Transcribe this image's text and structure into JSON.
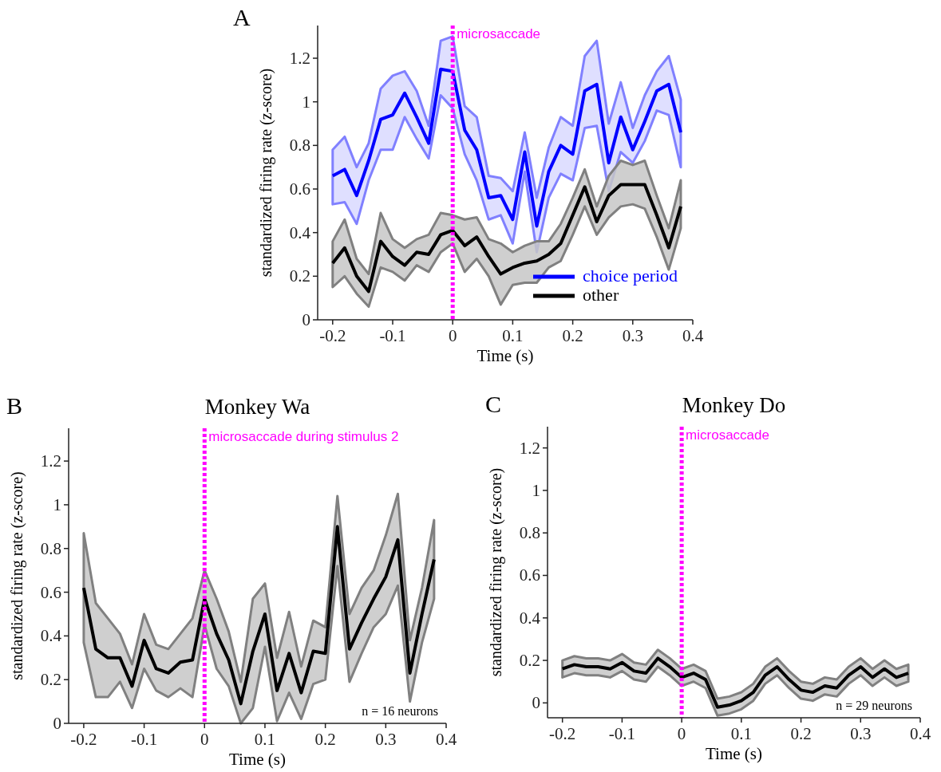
{
  "chart_data": [
    {
      "type": "line",
      "xlabel": "Time (s)",
      "ylabel": "standardized firing rate (z-score)",
      "annotations": [
        "A"
      ],
      "x": [
        -0.2,
        -0.18,
        -0.16,
        -0.14,
        -0.12,
        -0.1,
        -0.08,
        -0.06,
        -0.04,
        -0.02,
        0,
        0.02,
        0.04,
        0.06,
        0.08,
        0.1,
        0.12,
        0.14,
        0.16,
        0.18,
        0.2,
        0.22,
        0.24,
        0.26,
        0.28,
        0.3,
        0.32,
        0.34,
        0.36,
        0.38
      ],
      "series": [
        {
          "name": "choice period",
          "color": "#0000ff",
          "values": [
            0.66,
            0.69,
            0.57,
            0.73,
            0.92,
            0.94,
            1.04,
            0.93,
            0.81,
            1.15,
            1.14,
            0.87,
            0.78,
            0.56,
            0.57,
            0.46,
            0.77,
            0.43,
            0.68,
            0.8,
            0.76,
            1.05,
            1.08,
            0.72,
            0.93,
            0.78,
            0.91,
            1.05,
            1.08,
            0.86
          ],
          "upper": [
            0.78,
            0.84,
            0.7,
            0.81,
            1.06,
            1.12,
            1.14,
            1.05,
            0.89,
            1.28,
            1.3,
            0.98,
            0.93,
            0.66,
            0.65,
            0.59,
            0.86,
            0.56,
            0.79,
            0.93,
            0.89,
            1.21,
            1.28,
            0.9,
            1.09,
            0.88,
            1.03,
            1.14,
            1.21,
            1.01
          ],
          "lower": [
            0.53,
            0.54,
            0.44,
            0.64,
            0.78,
            0.78,
            0.93,
            0.83,
            0.74,
            1.03,
            0.97,
            0.76,
            0.64,
            0.46,
            0.48,
            0.35,
            0.68,
            0.31,
            0.56,
            0.67,
            0.64,
            0.88,
            0.89,
            0.59,
            0.77,
            0.72,
            0.82,
            0.96,
            0.94,
            0.7
          ]
        },
        {
          "name": "other",
          "color": "#000000",
          "values": [
            0.26,
            0.33,
            0.2,
            0.13,
            0.36,
            0.29,
            0.25,
            0.31,
            0.3,
            0.39,
            0.41,
            0.34,
            0.38,
            0.29,
            0.21,
            0.24,
            0.26,
            0.27,
            0.3,
            0.35,
            0.48,
            0.61,
            0.45,
            0.57,
            0.62,
            0.62,
            0.62,
            0.48,
            0.33,
            0.52
          ],
          "upper": [
            0.36,
            0.46,
            0.28,
            0.21,
            0.49,
            0.37,
            0.33,
            0.37,
            0.39,
            0.49,
            0.48,
            0.46,
            0.47,
            0.37,
            0.35,
            0.31,
            0.34,
            0.36,
            0.36,
            0.44,
            0.56,
            0.69,
            0.52,
            0.66,
            0.73,
            0.71,
            0.73,
            0.57,
            0.42,
            0.64
          ],
          "lower": [
            0.15,
            0.2,
            0.12,
            0.06,
            0.24,
            0.22,
            0.18,
            0.25,
            0.22,
            0.31,
            0.35,
            0.22,
            0.28,
            0.2,
            0.07,
            0.16,
            0.17,
            0.17,
            0.24,
            0.27,
            0.39,
            0.52,
            0.39,
            0.47,
            0.52,
            0.53,
            0.51,
            0.38,
            0.23,
            0.42
          ]
        }
      ],
      "ref_lines": [
        {
          "axis": "x",
          "value": 0,
          "label": "microsaccade",
          "color": "#ff00ff",
          "line_style": "dotted"
        }
      ],
      "xlim": [
        -0.225,
        0.4
      ],
      "xticks": [
        -0.2,
        -0.1,
        0,
        0.1,
        0.2,
        0.3,
        0.4
      ],
      "ylim": [
        0,
        1.35
      ],
      "yticks": [
        0,
        0.2,
        0.4,
        0.6,
        0.8,
        1,
        1.2
      ],
      "legend": "bottom right",
      "grid": false,
      "marker": "none",
      "line_style": "solid"
    },
    {
      "type": "line",
      "title": "Monkey Wa",
      "xlabel": "Time (s)",
      "ylabel": "standardized firing rate (z-score)",
      "annotations": [
        "B",
        "n = 16 neurons"
      ],
      "x": [
        -0.2,
        -0.18,
        -0.16,
        -0.14,
        -0.12,
        -0.1,
        -0.08,
        -0.06,
        -0.04,
        -0.02,
        0,
        0.02,
        0.04,
        0.06,
        0.08,
        0.1,
        0.12,
        0.14,
        0.16,
        0.18,
        0.2,
        0.22,
        0.24,
        0.26,
        0.28,
        0.3,
        0.32,
        0.34,
        0.36,
        0.38
      ],
      "series": [
        {
          "color": "#000000",
          "values": [
            0.62,
            0.34,
            0.3,
            0.3,
            0.17,
            0.38,
            0.25,
            0.23,
            0.28,
            0.29,
            0.57,
            0.41,
            0.29,
            0.09,
            0.33,
            0.5,
            0.15,
            0.32,
            0.14,
            0.33,
            0.32,
            0.9,
            0.34,
            0.46,
            0.57,
            0.67,
            0.84,
            0.23,
            0.5,
            0.75
          ],
          "upper": [
            0.87,
            0.55,
            0.48,
            0.41,
            0.27,
            0.5,
            0.36,
            0.34,
            0.41,
            0.48,
            0.7,
            0.57,
            0.42,
            0.19,
            0.57,
            0.64,
            0.3,
            0.51,
            0.26,
            0.47,
            0.44,
            1.04,
            0.5,
            0.62,
            0.7,
            0.86,
            1.05,
            0.38,
            0.62,
            0.93
          ],
          "lower": [
            0.37,
            0.12,
            0.12,
            0.19,
            0.07,
            0.25,
            0.15,
            0.12,
            0.16,
            0.12,
            0.45,
            0.25,
            0.17,
            0,
            0.07,
            0.35,
            0.01,
            0.14,
            0.02,
            0.18,
            0.2,
            0.72,
            0.19,
            0.32,
            0.44,
            0.5,
            0.63,
            0.1,
            0.37,
            0.57
          ]
        }
      ],
      "ref_lines": [
        {
          "axis": "x",
          "value": 0,
          "label": "microsaccade during stimulus 2",
          "color": "#ff00ff",
          "line_style": "dotted"
        }
      ],
      "xlim": [
        -0.225,
        0.4
      ],
      "xticks": [
        -0.2,
        -0.1,
        0,
        0.1,
        0.2,
        0.3,
        0.4
      ],
      "ylim": [
        0,
        1.35
      ],
      "yticks": [
        0,
        0.2,
        0.4,
        0.6,
        0.8,
        1,
        1.2
      ],
      "legend": false,
      "grid": false,
      "marker": "none",
      "line_style": "solid"
    },
    {
      "type": "line",
      "title": "Monkey Do",
      "xlabel": "Time (s)",
      "ylabel": "standardized firing rate (z-score)",
      "annotations": [
        "C",
        "n = 29 neurons"
      ],
      "x": [
        -0.2,
        -0.18,
        -0.16,
        -0.14,
        -0.12,
        -0.1,
        -0.08,
        -0.06,
        -0.04,
        -0.02,
        0,
        0.02,
        0.04,
        0.06,
        0.08,
        0.1,
        0.12,
        0.14,
        0.16,
        0.18,
        0.2,
        0.22,
        0.24,
        0.26,
        0.28,
        0.3,
        0.32,
        0.34,
        0.36,
        0.38
      ],
      "series": [
        {
          "color": "#000000",
          "values": [
            0.16,
            0.18,
            0.17,
            0.17,
            0.16,
            0.19,
            0.15,
            0.14,
            0.21,
            0.17,
            0.12,
            0.14,
            0.11,
            -0.02,
            -0.01,
            0.01,
            0.05,
            0.13,
            0.17,
            0.11,
            0.06,
            0.05,
            0.08,
            0.07,
            0.13,
            0.17,
            0.12,
            0.16,
            0.12,
            0.14
          ],
          "upper": [
            0.2,
            0.22,
            0.21,
            0.21,
            0.2,
            0.23,
            0.19,
            0.18,
            0.25,
            0.21,
            0.16,
            0.18,
            0.15,
            0.02,
            0.03,
            0.05,
            0.09,
            0.17,
            0.21,
            0.15,
            0.1,
            0.09,
            0.12,
            0.11,
            0.17,
            0.21,
            0.16,
            0.2,
            0.16,
            0.18
          ],
          "lower": [
            0.12,
            0.14,
            0.13,
            0.13,
            0.12,
            0.15,
            0.11,
            0.1,
            0.17,
            0.13,
            0.08,
            0.1,
            0.07,
            -0.06,
            -0.05,
            -0.03,
            0.01,
            0.09,
            0.13,
            0.07,
            0.02,
            0.01,
            0.04,
            0.03,
            0.09,
            0.13,
            0.08,
            0.12,
            0.08,
            0.1
          ]
        }
      ],
      "ref_lines": [
        {
          "axis": "x",
          "value": 0,
          "label": "microsaccade",
          "color": "#ff00ff",
          "line_style": "dotted"
        }
      ],
      "xlim": [
        -0.225,
        0.4
      ],
      "xticks": [
        -0.2,
        -0.1,
        0,
        0.1,
        0.2,
        0.3,
        0.4
      ],
      "ylim": [
        -0.07,
        1.3
      ],
      "yticks": [
        0,
        0.2,
        0.4,
        0.6,
        0.8,
        1,
        1.2
      ],
      "legend": false,
      "grid": false,
      "marker": "none",
      "line_style": "solid"
    }
  ]
}
